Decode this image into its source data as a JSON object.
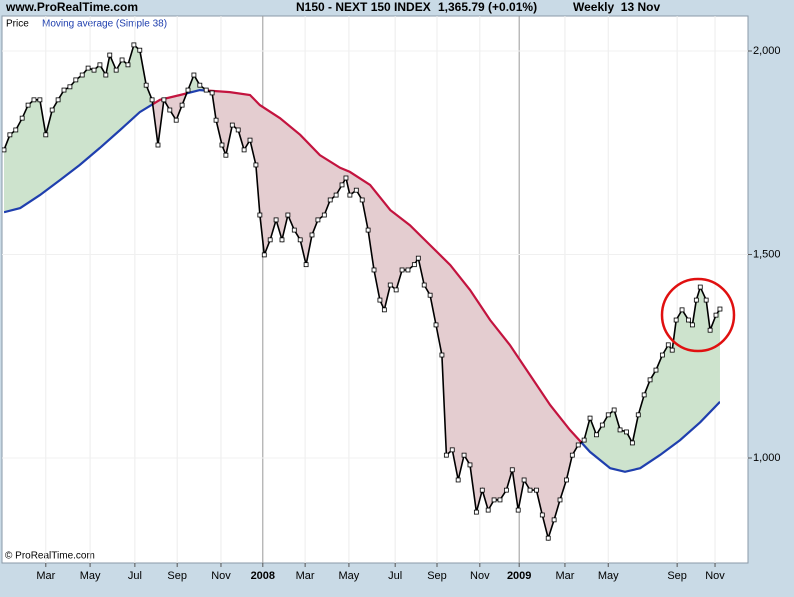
{
  "chart_data": {
    "type": "line",
    "site": "www.ProRealTime.com",
    "title": "N150 - NEXT 150 INDEX",
    "last_value": "1,365.79 (+0.01%)",
    "period": "Weekly  13 Nov",
    "footer": "© ProRealTime.com",
    "series": [
      {
        "name": "Price",
        "color": "#000000",
        "markers": true,
        "x": [
          0,
          1.2,
          2.4,
          3.7,
          4.9,
          6.1,
          7.3,
          8.5,
          9.8,
          11.0,
          12.2,
          13.4,
          14.6,
          15.9,
          17.1,
          18.3,
          19.5,
          20.7,
          21.5,
          22.8,
          24.0,
          25.2,
          26.4,
          27.6,
          28.9,
          30.1,
          31.3,
          32.5,
          33.7,
          35.0,
          36.2,
          37.4,
          38.6,
          39.8,
          41.1,
          42.3,
          43.1,
          44.3,
          45.1,
          46.4,
          47.6,
          48.8,
          50.0,
          51.2,
          52.0,
          52.9,
          54.1,
          55.3,
          56.5,
          57.7,
          59.0,
          60.2,
          61.4,
          62.6,
          63.8,
          65.1,
          66.3,
          67.5,
          68.7,
          69.5,
          70.3,
          71.6,
          72.8,
          74.0,
          75.2,
          76.4,
          77.3,
          78.5,
          79.7,
          80.9,
          82.1,
          83.4,
          84.2,
          85.4,
          86.6,
          87.8,
          89.0,
          89.9,
          91.1,
          92.3,
          93.5,
          94.7,
          96.0,
          97.2,
          98.4,
          99.6,
          100.8,
          102.1,
          103.3,
          104.5,
          105.7,
          106.9,
          108.2,
          109.4,
          110.6,
          111.8,
          113.0,
          114.3,
          115.5,
          116.7,
          117.9,
          119.1,
          120.4,
          121.6,
          122.8,
          124.0,
          125.2,
          126.5,
          127.7,
          128.9,
          130.1,
          131.3,
          132.5,
          133.8,
          135.0,
          135.8,
          136.6,
          137.8,
          139.1,
          139.9,
          140.7,
          141.5,
          142.7,
          143.5,
          144.7,
          145.5
        ],
        "values": [
          1757,
          1794,
          1806,
          1835,
          1867,
          1880,
          1880,
          1794,
          1855,
          1880,
          1904,
          1912,
          1929,
          1941,
          1958,
          1953,
          1966,
          1941,
          1990,
          1953,
          1978,
          1966,
          2015,
          2002,
          1916,
          1880,
          1769,
          1880,
          1855,
          1830,
          1867,
          1904,
          1941,
          1916,
          1904,
          1897,
          1830,
          1769,
          1744,
          1818,
          1806,
          1757,
          1781,
          1720,
          1597,
          1499,
          1536,
          1585,
          1536,
          1597,
          1560,
          1536,
          1475,
          1548,
          1585,
          1597,
          1634,
          1646,
          1671,
          1688,
          1646,
          1658,
          1634,
          1560,
          1462,
          1388,
          1364,
          1425,
          1413,
          1462,
          1462,
          1475,
          1491,
          1425,
          1400,
          1327,
          1253,
          1007,
          1020,
          946,
          1007,
          983,
          867,
          921,
          872,
          897,
          897,
          921,
          971,
          872,
          946,
          921,
          921,
          860,
          803,
          848,
          897,
          946,
          1007,
          1032,
          1044,
          1098,
          1057,
          1081,
          1106,
          1118,
          1069,
          1064,
          1037,
          1106,
          1155,
          1192,
          1216,
          1253,
          1278,
          1265,
          1339,
          1364,
          1339,
          1327,
          1388,
          1420,
          1388,
          1314,
          1351,
          1366
        ]
      },
      {
        "name": "Moving average (Simple 38)",
        "color": "#1f3fae",
        "below_color": "#c3143f",
        "x": [
          0,
          3.3,
          7.3,
          11.4,
          15.4,
          19.5,
          23.6,
          27.6,
          31.7,
          35.8,
          39.8,
          42.3,
          45.9,
          50.0,
          52.0,
          56.1,
          60.2,
          64.2,
          68.3,
          70.3,
          74.4,
          78.5,
          82.5,
          86.6,
          90.7,
          94.7,
          98.8,
          102.8,
          106.9,
          111.0,
          115.0,
          119.1,
          123.2,
          126.2,
          129.3,
          133.3,
          137.4,
          141.5,
          145.5
        ],
        "values": [
          1604,
          1614,
          1646,
          1683,
          1720,
          1762,
          1806,
          1850,
          1880,
          1892,
          1904,
          1902,
          1899,
          1892,
          1867,
          1835,
          1794,
          1744,
          1713,
          1703,
          1671,
          1609,
          1572,
          1523,
          1474,
          1413,
          1339,
          1278,
          1204,
          1130,
          1069,
          1015,
          975,
          966,
          975,
          1007,
          1044,
          1088,
          1138
        ]
      }
    ],
    "fill_above_color": "#cde3cd",
    "fill_below_color": "#e4cdd0",
    "xlim": [
      -0.4,
      151.2
    ],
    "xticks": [
      {
        "value": 8.5,
        "label": "Mar"
      },
      {
        "value": 17.5,
        "label": "May"
      },
      {
        "value": 26.6,
        "label": "Jul"
      },
      {
        "value": 35.2,
        "label": "Sep"
      },
      {
        "value": 44.1,
        "label": "Nov"
      },
      {
        "value": 52.6,
        "label": "2008"
      },
      {
        "value": 61.2,
        "label": "Mar"
      },
      {
        "value": 70.1,
        "label": "May"
      },
      {
        "value": 79.5,
        "label": "Jul"
      },
      {
        "value": 88.0,
        "label": "Sep"
      },
      {
        "value": 96.7,
        "label": "Nov"
      },
      {
        "value": 104.7,
        "label": "2009"
      },
      {
        "value": 114.0,
        "label": "Mar"
      },
      {
        "value": 122.8,
        "label": "May"
      },
      {
        "value": 136.8,
        "label": "Sep"
      },
      {
        "value": 144.5,
        "label": "Nov"
      }
    ],
    "ylim": [
      742,
      2086
    ],
    "yticks": [
      {
        "value": 1000,
        "label": "1,000"
      },
      {
        "value": 1500,
        "label": "1,500"
      },
      {
        "value": 2000,
        "label": "2,000"
      }
    ],
    "grid": true
  }
}
